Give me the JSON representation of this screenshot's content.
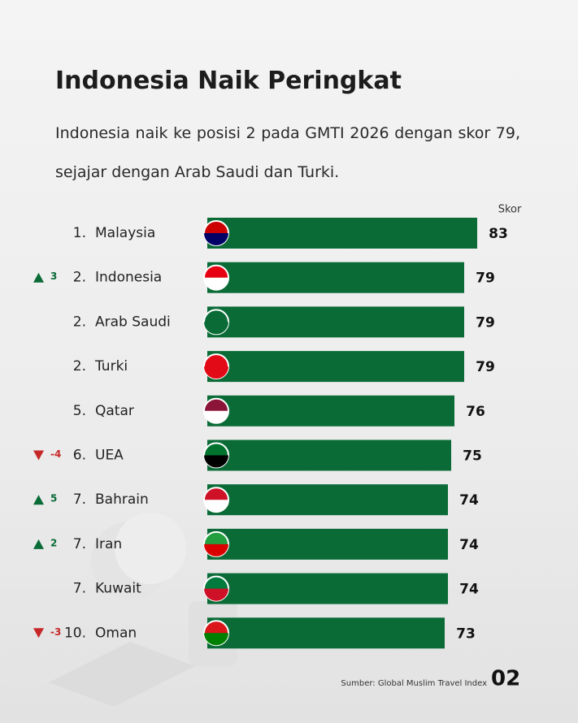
{
  "header": {
    "title": "Indonesia Naik Peringkat",
    "subtitle": "Indonesia naik ke posisi 2 pada GMTI 2026 dengan skor 79, sejajar dengan Arab Saudi dan Turki."
  },
  "chart_data": {
    "type": "bar",
    "orientation": "horizontal",
    "value_label": "Skor",
    "categories": [
      "Malaysia",
      "Indonesia",
      "Arab Saudi",
      "Turki",
      "Qatar",
      "UEA",
      "Bahrain",
      "Iran",
      "Kuwait",
      "Oman"
    ],
    "ranks": [
      "1.",
      "2.",
      "2.",
      "2.",
      "5.",
      "6.",
      "7.",
      "7.",
      "7.",
      "10."
    ],
    "rank_changes": [
      null,
      3,
      null,
      null,
      null,
      -4,
      5,
      2,
      null,
      -3
    ],
    "values": [
      83,
      79,
      79,
      79,
      76,
      75,
      74,
      74,
      74,
      73
    ],
    "color": "#0a6b37",
    "up_color": "#0a6b37",
    "down_color": "#c62828",
    "xlim": [
      0,
      100
    ]
  },
  "footer": {
    "source": "Sumber: Global Muslim Travel Index",
    "page": "02"
  }
}
